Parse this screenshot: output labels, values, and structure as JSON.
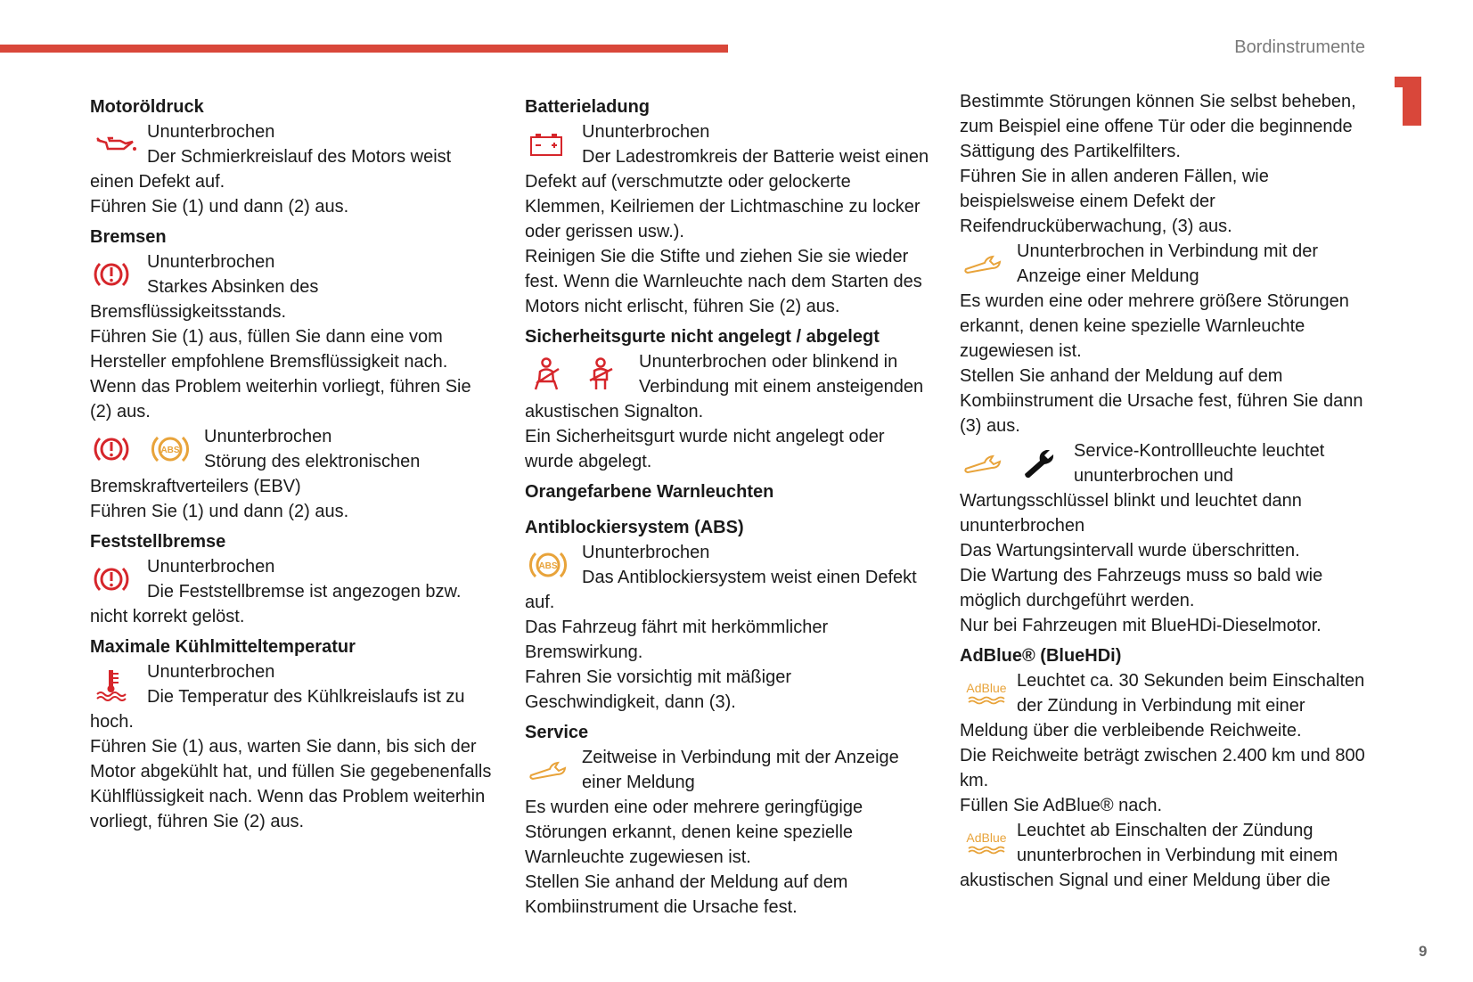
{
  "header": {
    "title": "Bordinstrumente",
    "chapter": "1",
    "page_number": "9"
  },
  "colors": {
    "accent": "#d9473a",
    "warning_red": "#d6262b",
    "warning_orange": "#e8a33a"
  },
  "columns": [
    {
      "blocks": [
        {
          "type": "heading",
          "text": "Motoröldruck"
        },
        {
          "type": "entry",
          "icons": [
            "oil-pressure-icon"
          ],
          "paras": [
            "Ununterbrochen",
            "Der Schmierkreislauf des Motors weist einen Defekt auf.",
            "Führen Sie (1) und dann (2) aus."
          ]
        },
        {
          "type": "heading",
          "text": "Bremsen"
        },
        {
          "type": "entry",
          "icons": [
            "brake-warning-icon"
          ],
          "paras": [
            "Ununterbrochen",
            "Starkes Absinken des Bremsflüssigkeitsstands.",
            "Führen Sie (1) aus, füllen Sie dann eine vom Hersteller empfohlene Bremsflüssigkeit nach.",
            "Wenn das Problem weiterhin vorliegt, führen Sie (2) aus."
          ]
        },
        {
          "type": "entry",
          "icons": [
            "brake-warning-icon",
            "abs-icon"
          ],
          "paras": [
            "Ununterbrochen",
            "Störung des elektronischen Bremskraftverteilers (EBV)",
            "Führen Sie (1) und dann (2) aus."
          ]
        },
        {
          "type": "heading",
          "text": "Feststellbremse"
        },
        {
          "type": "entry",
          "icons": [
            "brake-warning-icon"
          ],
          "paras": [
            "Ununterbrochen",
            "Die Feststellbremse ist angezogen bzw. nicht korrekt gelöst."
          ]
        },
        {
          "type": "heading",
          "text": "Maximale Kühlmitteltemperatur"
        },
        {
          "type": "entry",
          "icons": [
            "coolant-temperature-icon"
          ],
          "paras": [
            "Ununterbrochen",
            "Die Temperatur des Kühlkreislaufs ist zu hoch.",
            "Führen Sie (1) aus, warten Sie dann, bis sich der Motor abgekühlt hat, und füllen Sie gegebenenfalls Kühlflüssigkeit nach. Wenn das Problem weiterhin vorliegt, führen Sie (2) aus."
          ]
        }
      ]
    },
    {
      "blocks": [
        {
          "type": "heading",
          "text": "Batterieladung"
        },
        {
          "type": "entry",
          "icons": [
            "battery-icon"
          ],
          "paras": [
            "Ununterbrochen",
            "Der Ladestromkreis der Batterie weist einen Defekt auf (verschmutzte oder gelockerte Klemmen, Keilriemen der Lichtmaschine zu locker oder gerissen usw.).",
            "Reinigen Sie die Stifte und ziehen Sie sie wieder fest. Wenn die Warnleuchte nach dem Starten des Motors nicht erlischt, führen Sie (2) aus."
          ]
        },
        {
          "type": "heading",
          "text": "Sicherheitsgurte nicht angelegt / abgelegt"
        },
        {
          "type": "entry",
          "icons": [
            "seatbelt-front-icon",
            "seatbelt-rear-icon"
          ],
          "paras": [
            "Ununterbrochen oder blinkend in Verbindung mit einem ansteigenden akustischen Signalton.",
            "Ein Sicherheitsgurt wurde nicht angelegt oder wurde abgelegt."
          ]
        },
        {
          "type": "section",
          "text": "Orangefarbene Warnleuchten"
        },
        {
          "type": "heading",
          "text": "Antiblockiersystem (ABS)"
        },
        {
          "type": "entry",
          "icons": [
            "abs-icon"
          ],
          "paras": [
            "Ununterbrochen",
            "Das Antiblockiersystem weist einen Defekt auf.",
            "Das Fahrzeug fährt mit herkömmlicher Bremswirkung.",
            "Fahren Sie vorsichtig mit mäßiger Geschwindigkeit, dann (3)."
          ]
        },
        {
          "type": "heading",
          "text": "Service"
        },
        {
          "type": "entry",
          "icons": [
            "service-wrench-outline-icon"
          ],
          "paras": [
            "Zeitweise in Verbindung mit der Anzeige einer Meldung",
            "Es wurden eine oder mehrere geringfügige Störungen erkannt, denen keine spezielle Warnleuchte zugewiesen ist.",
            "Stellen Sie anhand der Meldung auf dem Kombiinstrument die Ursache fest."
          ]
        }
      ]
    },
    {
      "blocks": [
        {
          "type": "para",
          "text": "Bestimmte Störungen können Sie selbst beheben, zum Beispiel eine offene Tür oder die beginnende Sättigung des Partikelfilters."
        },
        {
          "type": "para",
          "text": "Führen Sie in allen anderen Fällen, wie beispielsweise einem Defekt der Reifendrucküberwachung, (3) aus."
        },
        {
          "type": "entry",
          "icons": [
            "service-wrench-outline-icon"
          ],
          "paras": [
            "Ununterbrochen in Verbindung mit der Anzeige einer Meldung",
            "Es wurden eine oder mehrere größere Störungen erkannt, denen keine spezielle Warnleuchte zugewiesen ist.",
            "Stellen Sie anhand der Meldung auf dem Kombiinstrument die Ursache fest, führen Sie dann (3) aus."
          ]
        },
        {
          "type": "entry",
          "icons": [
            "service-wrench-outline-icon",
            "maintenance-wrench-icon"
          ],
          "paras": [
            "Service-Kontrollleuchte leuchtet ununterbrochen und Wartungsschlüssel blinkt und leuchtet dann ununterbrochen",
            "Das Wartungsintervall wurde überschritten.",
            "Die Wartung des Fahrzeugs muss so bald wie möglich durchgeführt werden.",
            "Nur bei Fahrzeugen mit BlueHDi-Dieselmotor."
          ]
        },
        {
          "type": "heading",
          "text": "AdBlue® (BlueHDi)"
        },
        {
          "type": "entry",
          "icons": [
            "adblue-icon"
          ],
          "paras": [
            "Leuchtet ca. 30 Sekunden beim Einschalten der Zündung in Verbindung mit einer Meldung über die verbleibende Reichweite.",
            "Die Reichweite beträgt zwischen 2.400 km und 800 km.",
            "Füllen Sie AdBlue® nach."
          ]
        },
        {
          "type": "entry",
          "icons": [
            "adblue-icon"
          ],
          "paras": [
            "Leuchtet ab Einschalten der Zündung ununterbrochen in Verbindung mit einem akustischen Signal und einer Meldung über die"
          ]
        }
      ]
    }
  ],
  "icon_labels": {
    "adblue": "AdBlue"
  }
}
